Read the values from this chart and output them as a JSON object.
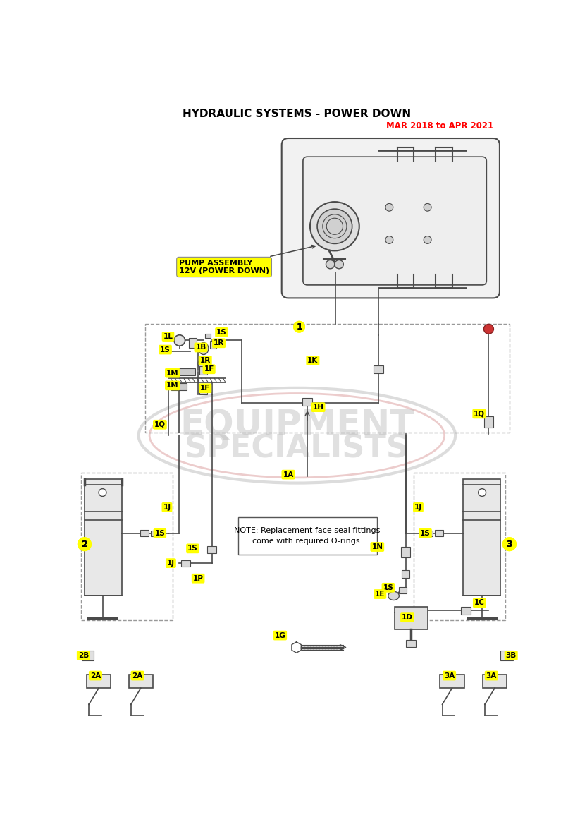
{
  "title": "HYDRAULIC SYSTEMS - POWER DOWN",
  "subtitle": "MAR 2018 to APR 2021",
  "subtitle_color": "#FF0000",
  "bg_color": "#FFFFFF",
  "label_bg": "#FFFF00",
  "label_text": "#000000",
  "line_color": "#4A4A4A",
  "dash_color": "#999999",
  "watermark_gray": "#BBBBBB",
  "watermark_red": "#D08080",
  "note_text": "NOTE: Replacement face seal fittings\ncome with required O-rings.",
  "pump_label": "PUMP ASSEMBLY\n12V (POWER DOWN)"
}
